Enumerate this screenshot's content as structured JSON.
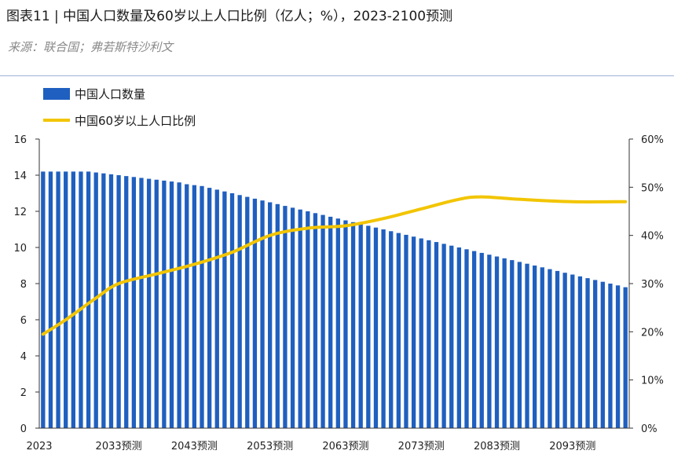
{
  "title": "图表11 | 中国人口数量及60岁以上人口比例（亿人；%），2023-2100预测",
  "source": "来源：联合国；弗若斯特沙利文",
  "colors": {
    "bar": "#1f5fbf",
    "line": "#f2c500",
    "axis": "#333333"
  },
  "chart_data": {
    "type": "bar",
    "x_start": 2023,
    "x_end": 2100,
    "x_ticks": [
      {
        "year": 2023,
        "label": "2023"
      },
      {
        "year": 2033,
        "label": "2033预测"
      },
      {
        "year": 2043,
        "label": "2043预测"
      },
      {
        "year": 2053,
        "label": "2053预测"
      },
      {
        "year": 2063,
        "label": "2063预测"
      },
      {
        "year": 2073,
        "label": "2073预测"
      },
      {
        "year": 2083,
        "label": "2083预测"
      },
      {
        "year": 2093,
        "label": "2093预测"
      }
    ],
    "y_left": {
      "min": 0,
      "max": 16,
      "ticks": [
        "0",
        "2",
        "4",
        "6",
        "8",
        "10",
        "12",
        "14",
        "16"
      ]
    },
    "y_right": {
      "min": 0,
      "max": 60,
      "ticks": [
        "0%",
        "10%",
        "20%",
        "30%",
        "40%",
        "50%",
        "60%"
      ]
    },
    "legend": {
      "position": "top-left"
    },
    "series": [
      {
        "name": "中国人口数量",
        "type": "bar",
        "axis": "left",
        "values": [
          14.2,
          14.2,
          14.2,
          14.2,
          14.2,
          14.2,
          14.2,
          14.15,
          14.1,
          14.05,
          14.0,
          13.95,
          13.9,
          13.85,
          13.8,
          13.75,
          13.7,
          13.65,
          13.6,
          13.5,
          13.45,
          13.4,
          13.3,
          13.2,
          13.1,
          13.0,
          12.9,
          12.8,
          12.7,
          12.6,
          12.5,
          12.4,
          12.3,
          12.2,
          12.1,
          12.0,
          11.9,
          11.8,
          11.7,
          11.6,
          11.5,
          11.4,
          11.3,
          11.2,
          11.1,
          11.0,
          10.9,
          10.8,
          10.7,
          10.6,
          10.5,
          10.4,
          10.3,
          10.2,
          10.1,
          10.0,
          9.9,
          9.8,
          9.7,
          9.6,
          9.5,
          9.4,
          9.3,
          9.2,
          9.1,
          9.0,
          8.9,
          8.8,
          8.7,
          8.6,
          8.5,
          8.4,
          8.3,
          8.2,
          8.1,
          8.0,
          7.9,
          7.8
        ]
      },
      {
        "name": "中国60岁以上人口比例",
        "type": "line",
        "axis": "right",
        "points": [
          {
            "x": 2023,
            "y": 19.5
          },
          {
            "x": 2026,
            "y": 22.5
          },
          {
            "x": 2030,
            "y": 27.0
          },
          {
            "x": 2033,
            "y": 30.0
          },
          {
            "x": 2038,
            "y": 32.0
          },
          {
            "x": 2043,
            "y": 34.0
          },
          {
            "x": 2048,
            "y": 36.5
          },
          {
            "x": 2053,
            "y": 40.0
          },
          {
            "x": 2058,
            "y": 41.5
          },
          {
            "x": 2063,
            "y": 42.0
          },
          {
            "x": 2068,
            "y": 43.5
          },
          {
            "x": 2073,
            "y": 45.5
          },
          {
            "x": 2078,
            "y": 47.5
          },
          {
            "x": 2081,
            "y": 48.0
          },
          {
            "x": 2086,
            "y": 47.5
          },
          {
            "x": 2093,
            "y": 47.0
          },
          {
            "x": 2100,
            "y": 47.0
          }
        ]
      }
    ]
  }
}
